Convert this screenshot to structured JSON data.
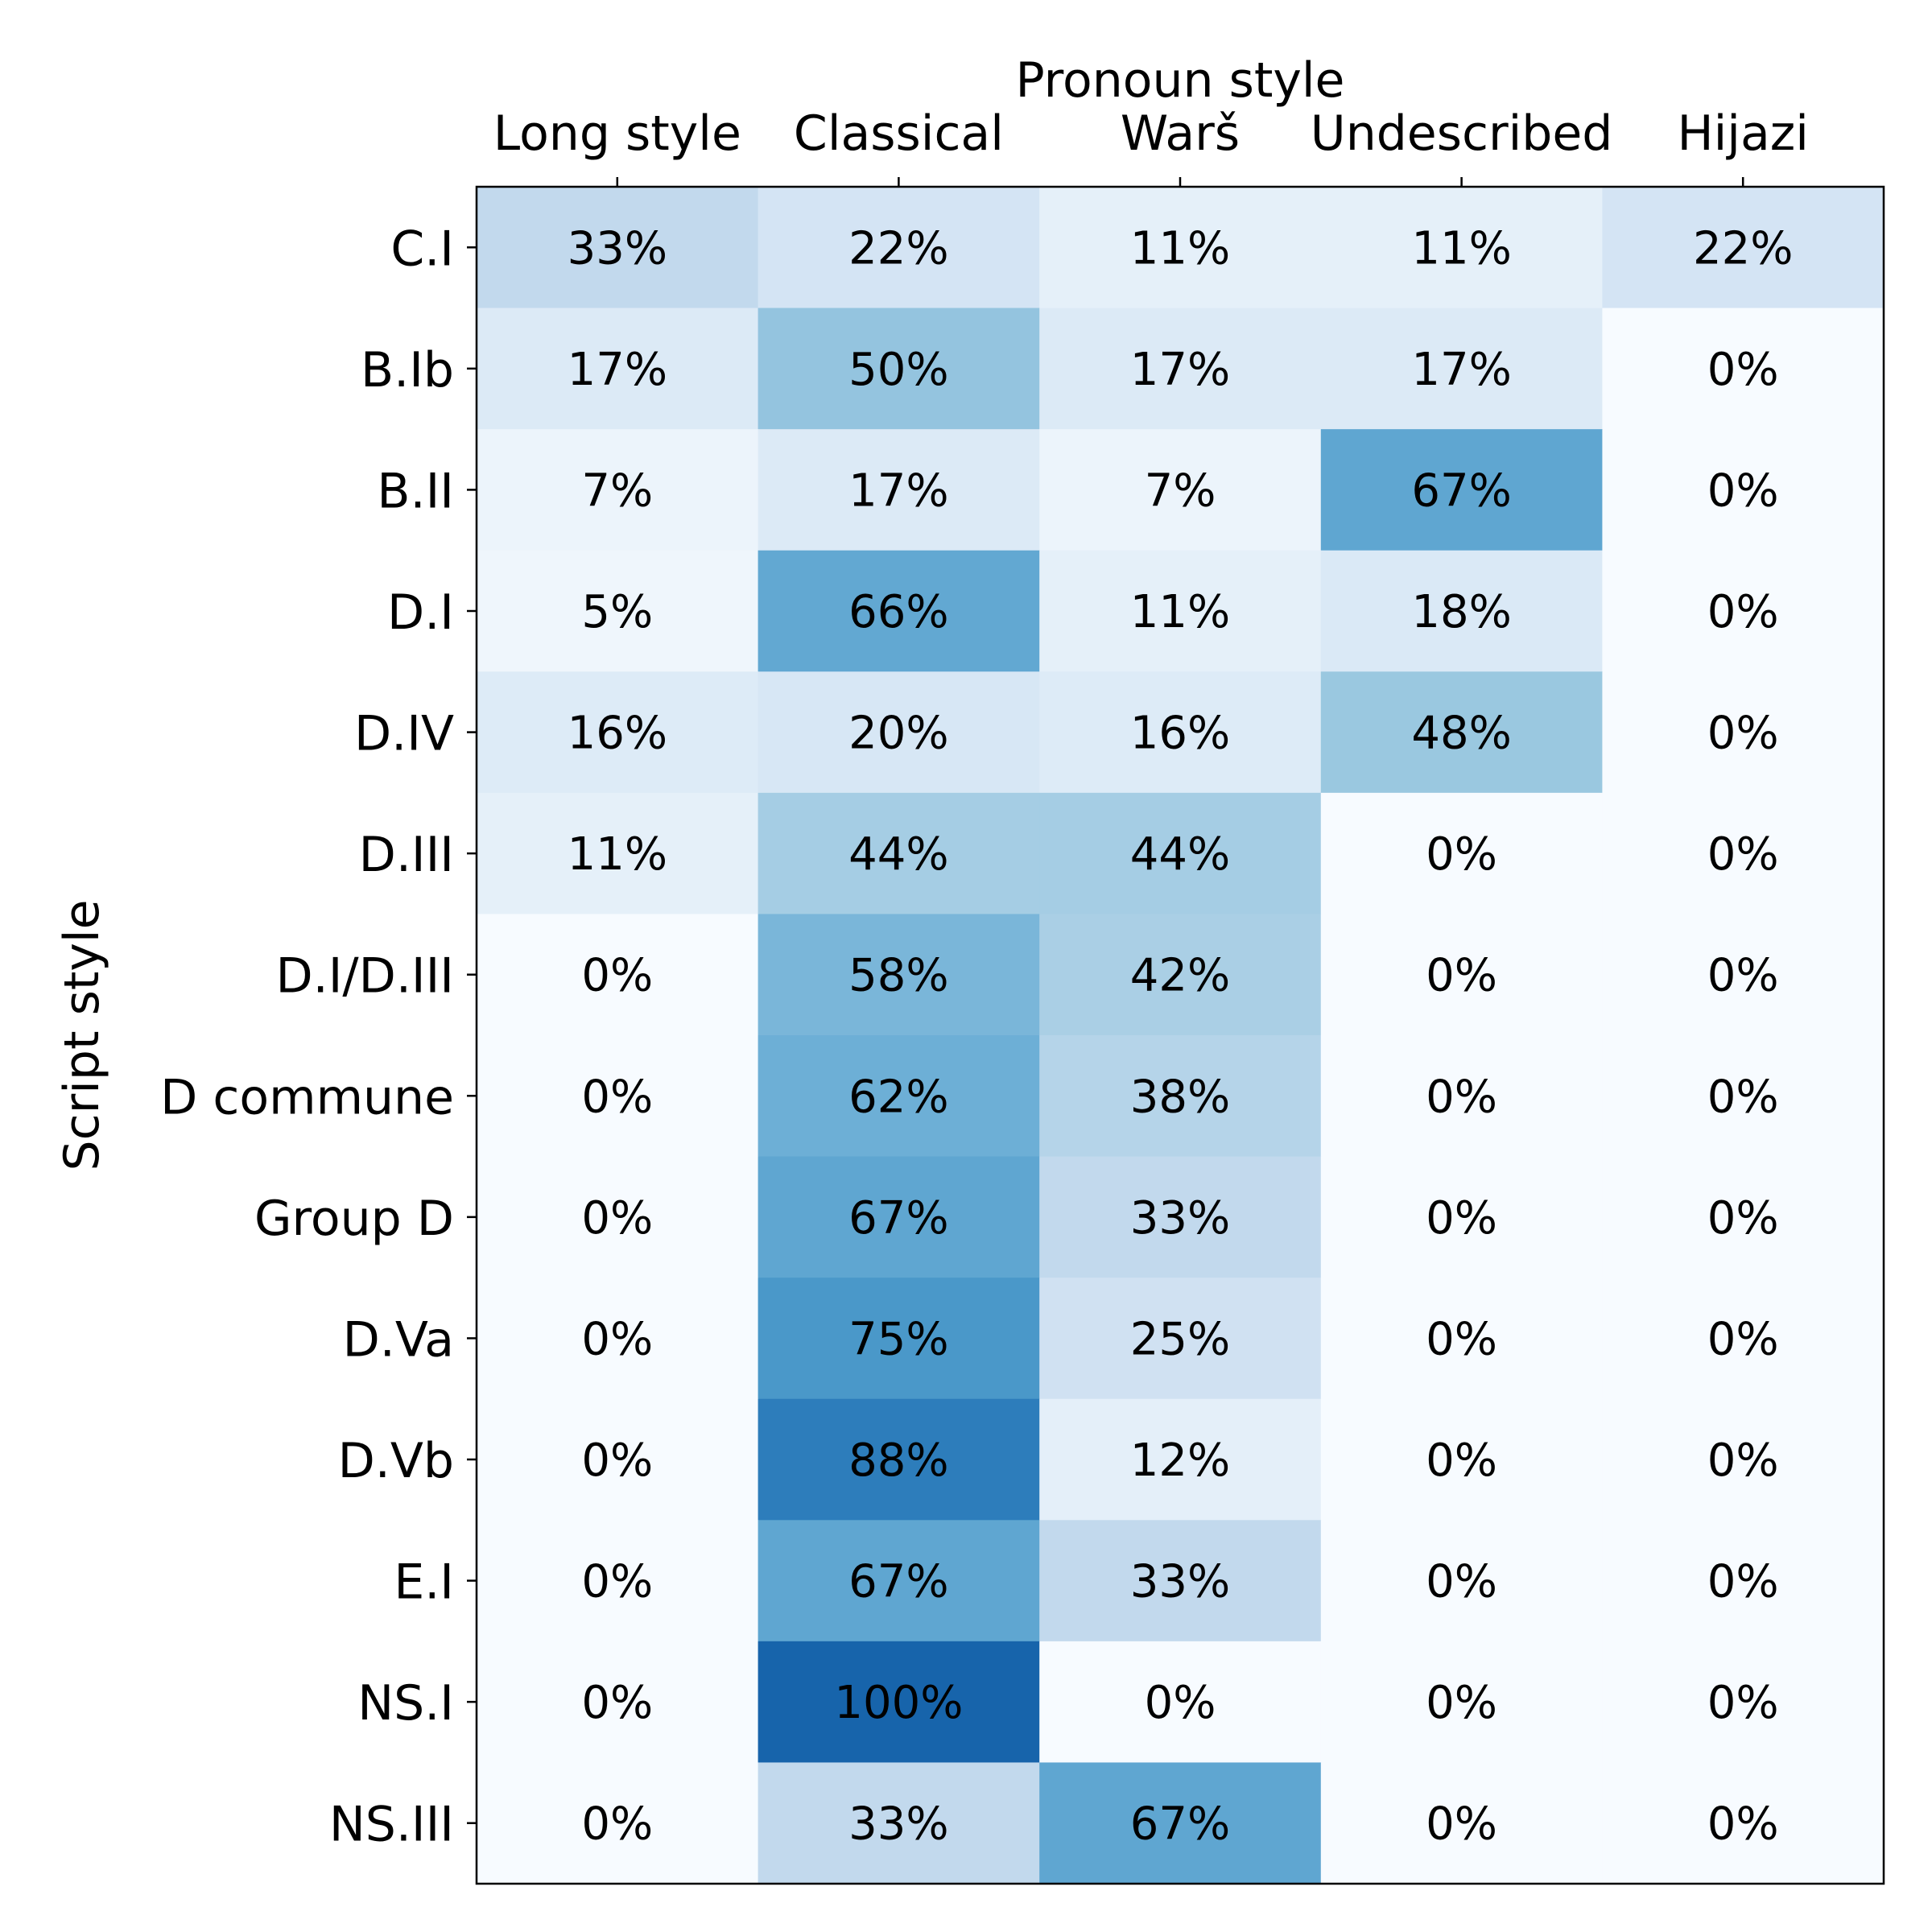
{
  "chart_data": {
    "type": "heatmap",
    "xlabel": "Pronoun style",
    "ylabel": "Script style",
    "columns": [
      "Long style",
      "Classical",
      "Warš",
      "Undescribed",
      "Hijazi"
    ],
    "rows": [
      "C.I",
      "B.Ib",
      "B.II",
      "D.I",
      "D.IV",
      "D.III",
      "D.I/D.III",
      "D commune",
      "Group D",
      "D.Va",
      "D.Vb",
      "E.I",
      "NS.I",
      "NS.III"
    ],
    "values": [
      [
        33,
        22,
        11,
        11,
        22
      ],
      [
        17,
        50,
        17,
        17,
        0
      ],
      [
        7,
        17,
        7,
        67,
        0
      ],
      [
        5,
        66,
        11,
        18,
        0
      ],
      [
        16,
        20,
        16,
        48,
        0
      ],
      [
        11,
        44,
        44,
        0,
        0
      ],
      [
        0,
        58,
        42,
        0,
        0
      ],
      [
        0,
        62,
        38,
        0,
        0
      ],
      [
        0,
        67,
        33,
        0,
        0
      ],
      [
        0,
        75,
        25,
        0,
        0
      ],
      [
        0,
        88,
        12,
        0,
        0
      ],
      [
        0,
        67,
        33,
        0,
        0
      ],
      [
        0,
        100,
        0,
        0,
        0
      ],
      [
        0,
        33,
        67,
        0,
        0
      ]
    ],
    "labels": [
      [
        "33%",
        "22%",
        "11%",
        "11%",
        "22%"
      ],
      [
        "17%",
        "50%",
        "17%",
        "17%",
        "0%"
      ],
      [
        "7%",
        "17%",
        "7%",
        "67%",
        "0%"
      ],
      [
        "5%",
        "66%",
        "11%",
        "18%",
        "0%"
      ],
      [
        "16%",
        "20%",
        "16%",
        "48%",
        "0%"
      ],
      [
        "11%",
        "44%",
        "44%",
        "0%",
        "0%"
      ],
      [
        "0%",
        "58%",
        "42%",
        "0%",
        "0%"
      ],
      [
        "0%",
        "62%",
        "38%",
        "0%",
        "0%"
      ],
      [
        "0%",
        "67%",
        "33%",
        "0%",
        "0%"
      ],
      [
        "0%",
        "75%",
        "25%",
        "0%",
        "0%"
      ],
      [
        "0%",
        "88%",
        "12%",
        "0%",
        "0%"
      ],
      [
        "0%",
        "67%",
        "33%",
        "0%",
        "0%"
      ],
      [
        "0%",
        "100%",
        "0%",
        "0%",
        "0%"
      ],
      [
        "0%",
        "33%",
        "67%",
        "0%",
        "0%"
      ]
    ],
    "value_range": [
      0,
      100
    ],
    "colormap": "Blues",
    "x_axis_position": "top",
    "grid": false,
    "legend": "none"
  }
}
